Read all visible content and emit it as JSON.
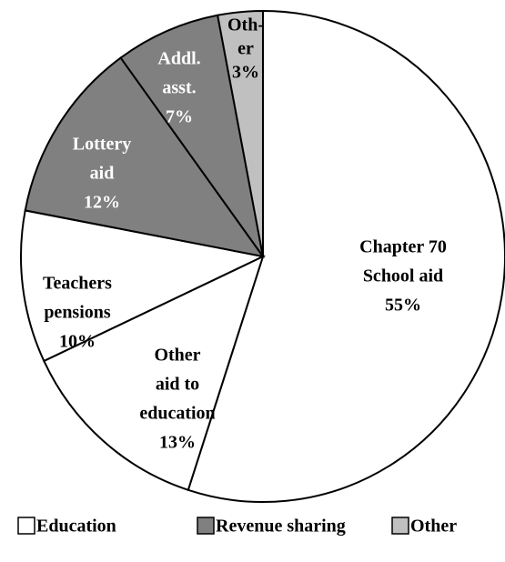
{
  "chart_data": {
    "type": "pie",
    "labels": [
      [
        "Chapter 70",
        "School aid"
      ],
      [
        "Other",
        "aid to",
        "education"
      ],
      [
        "Teachers",
        "pensions"
      ],
      [
        "Lottery",
        "aid"
      ],
      [
        "Addl.",
        "asst."
      ],
      [
        "Oth-",
        "er"
      ]
    ],
    "values": [
      55,
      13,
      10,
      12,
      7,
      3
    ],
    "value_labels": [
      "55%",
      "13%",
      "10%",
      "12%",
      "7%",
      "3%"
    ],
    "colors": [
      "#ffffff",
      "#ffffff",
      "#ffffff",
      "#808080",
      "#808080",
      "#c0c0c0"
    ],
    "legend": [
      {
        "name": "Education",
        "color": "#ffffff"
      },
      {
        "name": "Revenue sharing",
        "color": "#808080"
      },
      {
        "name": "Other",
        "color": "#c0c0c0"
      }
    ]
  }
}
